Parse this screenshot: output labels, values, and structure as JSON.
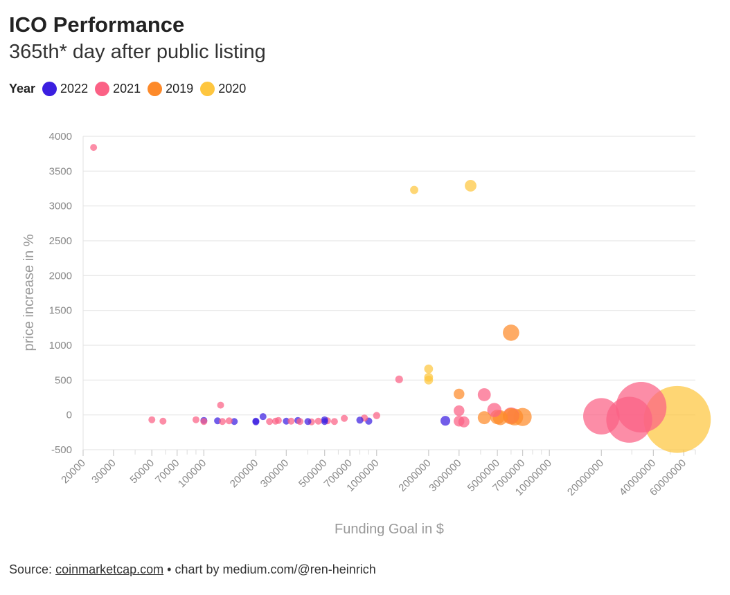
{
  "header": {
    "title": "ICO Performance",
    "subtitle": "365th* day after public listing"
  },
  "legend": {
    "label": "Year",
    "items": [
      {
        "name": "2022",
        "color": "#3b1fe0"
      },
      {
        "name": "2021",
        "color": "#fb6185"
      },
      {
        "name": "2019",
        "color": "#fd8a2a"
      },
      {
        "name": "2020",
        "color": "#fec63f"
      }
    ]
  },
  "footer": {
    "source_prefix": "Source:",
    "source_link": "coinmarketcap.com",
    "credit": "• chart by medium.com/@ren-heinrich"
  },
  "chart_data": {
    "type": "scatter",
    "title": "ICO Performance",
    "subtitle": "365th* day after public listing",
    "xlabel": "Funding Goal in $",
    "ylabel": "price increase in %",
    "x_scale": "log",
    "xlim": [
      20000,
      70000000
    ],
    "ylim": [
      -500,
      4000
    ],
    "x_ticks": [
      20000,
      30000,
      50000,
      70000,
      100000,
      200000,
      300000,
      500000,
      700000,
      1000000,
      2000000,
      3000000,
      5000000,
      7000000,
      10000000,
      20000000,
      40000000,
      60000000
    ],
    "x_tick_labels": [
      "20000",
      "30000",
      "50000",
      "70000",
      "100000",
      "200000",
      "300000",
      "500000",
      "700000",
      "1000000",
      "2000000",
      "3000000",
      "5000000",
      "7000000",
      "10000000",
      "20000000",
      "40000000",
      "60000000"
    ],
    "y_ticks": [
      -500,
      0,
      500,
      1000,
      1500,
      2000,
      2500,
      3000,
      3500,
      4000
    ],
    "y_tick_labels": [
      "-500",
      "0",
      "500",
      "1000",
      "1500",
      "2000",
      "2500",
      "3000",
      "3500",
      "4000"
    ],
    "grid": true,
    "legend_position": "top-left",
    "series": [
      {
        "name": "2022",
        "color": "#3b1fe0",
        "points": [
          {
            "x": 100000,
            "y": -80
          },
          {
            "x": 120000,
            "y": -85
          },
          {
            "x": 150000,
            "y": -95
          },
          {
            "x": 200000,
            "y": -90
          },
          {
            "x": 200000,
            "y": -100
          },
          {
            "x": 220000,
            "y": -25
          },
          {
            "x": 300000,
            "y": -90
          },
          {
            "x": 350000,
            "y": -80
          },
          {
            "x": 400000,
            "y": -95
          },
          {
            "x": 500000,
            "y": -70
          },
          {
            "x": 500000,
            "y": -95
          },
          {
            "x": 800000,
            "y": -75
          },
          {
            "x": 900000,
            "y": -90
          },
          {
            "x": 2500000,
            "y": -85
          }
        ]
      },
      {
        "name": "2021",
        "color": "#fb6185",
        "points": [
          {
            "x": 23000,
            "y": 3840
          },
          {
            "x": 50000,
            "y": -70
          },
          {
            "x": 58000,
            "y": -90
          },
          {
            "x": 90000,
            "y": -70
          },
          {
            "x": 100000,
            "y": -95
          },
          {
            "x": 125000,
            "y": 140
          },
          {
            "x": 128000,
            "y": -95
          },
          {
            "x": 140000,
            "y": -85
          },
          {
            "x": 240000,
            "y": -95
          },
          {
            "x": 260000,
            "y": -90
          },
          {
            "x": 270000,
            "y": -80
          },
          {
            "x": 320000,
            "y": -90
          },
          {
            "x": 360000,
            "y": -95
          },
          {
            "x": 420000,
            "y": -100
          },
          {
            "x": 460000,
            "y": -90
          },
          {
            "x": 520000,
            "y": -85
          },
          {
            "x": 570000,
            "y": -95
          },
          {
            "x": 650000,
            "y": -50
          },
          {
            "x": 850000,
            "y": -45
          },
          {
            "x": 1000000,
            "y": -10
          },
          {
            "x": 1350000,
            "y": 510
          },
          {
            "x": 3000000,
            "y": 60
          },
          {
            "x": 3000000,
            "y": -90
          },
          {
            "x": 3200000,
            "y": -100
          },
          {
            "x": 4200000,
            "y": 290
          },
          {
            "x": 4800000,
            "y": 70
          },
          {
            "x": 6000000,
            "y": -10
          },
          {
            "x": 20000000,
            "y": -20
          },
          {
            "x": 29000000,
            "y": -70
          },
          {
            "x": 34000000,
            "y": 110
          }
        ]
      },
      {
        "name": "2019",
        "color": "#fd8a2a",
        "points": [
          {
            "x": 3000000,
            "y": 300
          },
          {
            "x": 4200000,
            "y": -40
          },
          {
            "x": 5000000,
            "y": -30
          },
          {
            "x": 5200000,
            "y": -40
          },
          {
            "x": 6000000,
            "y": 1180
          },
          {
            "x": 6000000,
            "y": -20
          },
          {
            "x": 6300000,
            "y": -30
          },
          {
            "x": 7000000,
            "y": -30
          }
        ]
      },
      {
        "name": "2020",
        "color": "#fec63f",
        "points": [
          {
            "x": 1650000,
            "y": 3230
          },
          {
            "x": 2000000,
            "y": 660
          },
          {
            "x": 2000000,
            "y": 540
          },
          {
            "x": 2000000,
            "y": 500
          },
          {
            "x": 3500000,
            "y": 3290
          },
          {
            "x": 55000000,
            "y": -65
          }
        ]
      }
    ]
  }
}
